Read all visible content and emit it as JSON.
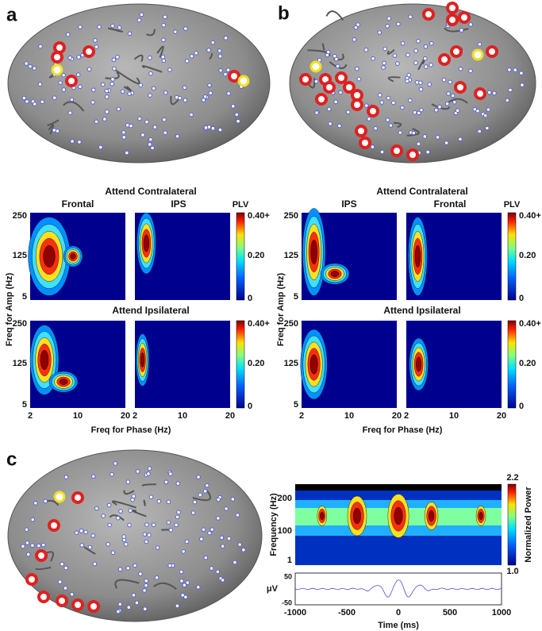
{
  "panel_a": {
    "label": "a",
    "top_title": "Attend Contralateral",
    "bottom_title": "Attend Ipsilateral",
    "columns": [
      "Frontal",
      "IPS"
    ],
    "colorbar_title": "PLV",
    "colorbar_ticks": [
      "0.40+",
      "0.20",
      0
    ],
    "y_label": "Freq for Amp (Hz)",
    "y_ticks": [
      250,
      125,
      5
    ],
    "x_label": "Freq for Phase (Hz)",
    "x_ticks": [
      2,
      10,
      20
    ]
  },
  "panel_b": {
    "label": "b",
    "top_title": "Attend Contralateral",
    "bottom_title": "Attend Ipsilateral",
    "columns": [
      "IPS",
      "Frontal"
    ],
    "colorbar_title": "PLV",
    "colorbar_ticks": [
      "0.40+",
      "0.20",
      0
    ],
    "y_label": "Freq for Amp (Hz)",
    "y_ticks": [
      250,
      125,
      5
    ],
    "x_label": "Freq for Phase (Hz)",
    "x_ticks": [
      2,
      10,
      20
    ]
  },
  "panel_c": {
    "label": "c",
    "y_label": "Frequency (Hz)",
    "y_ticks": [
      200,
      100,
      1
    ],
    "colorbar_title": "Normalized Power",
    "colorbar_ticks": [
      "2.2",
      "1.0"
    ],
    "lfp_label": "μV",
    "lfp_ticks": [
      50,
      -50
    ],
    "x_ticks": [
      -1000,
      -500,
      0,
      500,
      1000
    ],
    "x_label": "Time (ms)"
  }
}
